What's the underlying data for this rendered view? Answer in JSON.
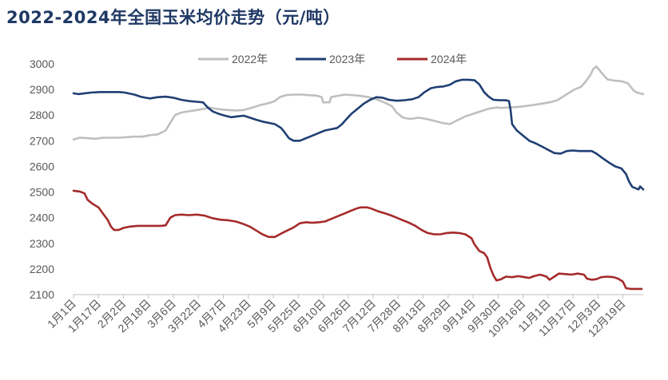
{
  "chart_data": {
    "type": "line",
    "title": "2022-2024年全国玉米均价走势（元/吨）",
    "ylim": [
      2100,
      3000
    ],
    "yticks": [
      2100,
      2200,
      2300,
      2400,
      2500,
      2600,
      2700,
      2800,
      2900,
      3000
    ],
    "x_tick_labels": [
      "1月1日",
      "1月17日",
      "2月2日",
      "2月18日",
      "3月6日",
      "3月22日",
      "4月7日",
      "4月23日",
      "5月9日",
      "5月25日",
      "6月10日",
      "6月26日",
      "7月12日",
      "7月28日",
      "8月13日",
      "8月29日",
      "9月14日",
      "9月30日",
      "10月16日",
      "11月1日",
      "11月17日",
      "12月3日",
      "12月19日"
    ],
    "x_tick_days": [
      1,
      17,
      33,
      49,
      65,
      81,
      97,
      113,
      129,
      145,
      161,
      177,
      193,
      209,
      225,
      241,
      257,
      273,
      289,
      305,
      321,
      337,
      353
    ],
    "xlim": [
      1,
      366
    ],
    "grid": false,
    "legend_position": "top",
    "series": [
      {
        "name": "2022年",
        "color": "#bfbfbf",
        "points": [
          [
            1,
            2705
          ],
          [
            5,
            2712
          ],
          [
            10,
            2710
          ],
          [
            15,
            2708
          ],
          [
            20,
            2712
          ],
          [
            25,
            2712
          ],
          [
            30,
            2712
          ],
          [
            35,
            2714
          ],
          [
            40,
            2716
          ],
          [
            45,
            2716
          ],
          [
            50,
            2722
          ],
          [
            55,
            2725
          ],
          [
            60,
            2740
          ],
          [
            63,
            2770
          ],
          [
            66,
            2800
          ],
          [
            70,
            2810
          ],
          [
            75,
            2815
          ],
          [
            80,
            2820
          ],
          [
            85,
            2825
          ],
          [
            88,
            2830
          ],
          [
            92,
            2825
          ],
          [
            96,
            2822
          ],
          [
            100,
            2820
          ],
          [
            105,
            2818
          ],
          [
            110,
            2820
          ],
          [
            113,
            2825
          ],
          [
            117,
            2832
          ],
          [
            121,
            2840
          ],
          [
            125,
            2845
          ],
          [
            130,
            2855
          ],
          [
            133,
            2870
          ],
          [
            137,
            2878
          ],
          [
            142,
            2880
          ],
          [
            147,
            2880
          ],
          [
            152,
            2878
          ],
          [
            157,
            2876
          ],
          [
            160,
            2870
          ],
          [
            161,
            2850
          ],
          [
            165,
            2850
          ],
          [
            166,
            2870
          ],
          [
            170,
            2875
          ],
          [
            175,
            2880
          ],
          [
            180,
            2878
          ],
          [
            185,
            2875
          ],
          [
            190,
            2870
          ],
          [
            195,
            2862
          ],
          [
            200,
            2850
          ],
          [
            205,
            2835
          ],
          [
            208,
            2810
          ],
          [
            212,
            2790
          ],
          [
            217,
            2785
          ],
          [
            222,
            2790
          ],
          [
            227,
            2785
          ],
          [
            232,
            2778
          ],
          [
            237,
            2770
          ],
          [
            242,
            2765
          ],
          [
            247,
            2780
          ],
          [
            252,
            2795
          ],
          [
            257,
            2805
          ],
          [
            262,
            2815
          ],
          [
            267,
            2825
          ],
          [
            272,
            2830
          ],
          [
            275,
            2828
          ],
          [
            280,
            2830
          ],
          [
            286,
            2832
          ],
          [
            290,
            2835
          ],
          [
            296,
            2840
          ],
          [
            301,
            2845
          ],
          [
            306,
            2850
          ],
          [
            311,
            2858
          ],
          [
            314,
            2870
          ],
          [
            318,
            2885
          ],
          [
            322,
            2900
          ],
          [
            326,
            2910
          ],
          [
            329,
            2930
          ],
          [
            332,
            2955
          ],
          [
            334,
            2980
          ],
          [
            336,
            2990
          ],
          [
            338,
            2975
          ],
          [
            340,
            2960
          ],
          [
            343,
            2940
          ],
          [
            347,
            2935
          ],
          [
            352,
            2932
          ],
          [
            356,
            2925
          ],
          [
            358,
            2910
          ],
          [
            360,
            2895
          ],
          [
            362,
            2888
          ],
          [
            364,
            2885
          ],
          [
            366,
            2882
          ]
        ]
      },
      {
        "name": "2023年",
        "color": "#1f3f73",
        "points": [
          [
            1,
            2885
          ],
          [
            4,
            2882
          ],
          [
            8,
            2885
          ],
          [
            12,
            2888
          ],
          [
            18,
            2890
          ],
          [
            25,
            2890
          ],
          [
            30,
            2890
          ],
          [
            34,
            2888
          ],
          [
            36,
            2885
          ],
          [
            40,
            2880
          ],
          [
            44,
            2872
          ],
          [
            47,
            2868
          ],
          [
            50,
            2865
          ],
          [
            55,
            2870
          ],
          [
            60,
            2872
          ],
          [
            65,
            2868
          ],
          [
            70,
            2860
          ],
          [
            75,
            2855
          ],
          [
            80,
            2852
          ],
          [
            84,
            2850
          ],
          [
            87,
            2830
          ],
          [
            90,
            2815
          ],
          [
            94,
            2805
          ],
          [
            98,
            2798
          ],
          [
            102,
            2792
          ],
          [
            106,
            2795
          ],
          [
            110,
            2798
          ],
          [
            114,
            2790
          ],
          [
            118,
            2782
          ],
          [
            122,
            2775
          ],
          [
            126,
            2770
          ],
          [
            130,
            2765
          ],
          [
            134,
            2750
          ],
          [
            136,
            2735
          ],
          [
            139,
            2710
          ],
          [
            142,
            2700
          ],
          [
            146,
            2700
          ],
          [
            150,
            2710
          ],
          [
            154,
            2720
          ],
          [
            158,
            2730
          ],
          [
            162,
            2740
          ],
          [
            166,
            2745
          ],
          [
            170,
            2750
          ],
          [
            173,
            2765
          ],
          [
            176,
            2785
          ],
          [
            179,
            2805
          ],
          [
            183,
            2825
          ],
          [
            187,
            2845
          ],
          [
            191,
            2860
          ],
          [
            195,
            2870
          ],
          [
            199,
            2868
          ],
          [
            203,
            2860
          ],
          [
            208,
            2856
          ],
          [
            213,
            2858
          ],
          [
            218,
            2862
          ],
          [
            222,
            2870
          ],
          [
            226,
            2890
          ],
          [
            230,
            2905
          ],
          [
            234,
            2910
          ],
          [
            238,
            2912
          ],
          [
            242,
            2918
          ],
          [
            246,
            2932
          ],
          [
            250,
            2938
          ],
          [
            254,
            2938
          ],
          [
            258,
            2936
          ],
          [
            261,
            2920
          ],
          [
            264,
            2890
          ],
          [
            267,
            2872
          ],
          [
            270,
            2860
          ],
          [
            274,
            2858
          ],
          [
            278,
            2858
          ],
          [
            280,
            2855
          ],
          [
            281,
            2820
          ],
          [
            282,
            2765
          ],
          [
            285,
            2740
          ],
          [
            289,
            2720
          ],
          [
            293,
            2700
          ],
          [
            297,
            2690
          ],
          [
            301,
            2678
          ],
          [
            305,
            2665
          ],
          [
            309,
            2652
          ],
          [
            313,
            2650
          ],
          [
            317,
            2660
          ],
          [
            321,
            2662
          ],
          [
            325,
            2660
          ],
          [
            329,
            2660
          ],
          [
            333,
            2660
          ],
          [
            336,
            2650
          ],
          [
            340,
            2632
          ],
          [
            344,
            2615
          ],
          [
            348,
            2600
          ],
          [
            352,
            2592
          ],
          [
            355,
            2570
          ],
          [
            357,
            2540
          ],
          [
            359,
            2520
          ],
          [
            361,
            2515
          ],
          [
            363,
            2510
          ],
          [
            364,
            2522
          ],
          [
            366,
            2510
          ]
        ]
      },
      {
        "name": "2024年",
        "color": "#a52a2a",
        "points": [
          [
            1,
            2505
          ],
          [
            5,
            2502
          ],
          [
            8,
            2495
          ],
          [
            10,
            2470
          ],
          [
            13,
            2455
          ],
          [
            17,
            2440
          ],
          [
            20,
            2415
          ],
          [
            23,
            2390
          ],
          [
            25,
            2365
          ],
          [
            27,
            2352
          ],
          [
            30,
            2352
          ],
          [
            33,
            2360
          ],
          [
            37,
            2365
          ],
          [
            42,
            2368
          ],
          [
            47,
            2368
          ],
          [
            52,
            2368
          ],
          [
            57,
            2368
          ],
          [
            60,
            2370
          ],
          [
            63,
            2400
          ],
          [
            66,
            2410
          ],
          [
            70,
            2412
          ],
          [
            75,
            2410
          ],
          [
            80,
            2412
          ],
          [
            85,
            2408
          ],
          [
            90,
            2398
          ],
          [
            95,
            2392
          ],
          [
            100,
            2390
          ],
          [
            105,
            2385
          ],
          [
            110,
            2375
          ],
          [
            114,
            2365
          ],
          [
            118,
            2350
          ],
          [
            122,
            2335
          ],
          [
            126,
            2325
          ],
          [
            130,
            2325
          ],
          [
            134,
            2338
          ],
          [
            138,
            2350
          ],
          [
            142,
            2362
          ],
          [
            146,
            2378
          ],
          [
            150,
            2382
          ],
          [
            154,
            2380
          ],
          [
            158,
            2382
          ],
          [
            162,
            2385
          ],
          [
            166,
            2395
          ],
          [
            170,
            2405
          ],
          [
            174,
            2415
          ],
          [
            178,
            2425
          ],
          [
            182,
            2435
          ],
          [
            185,
            2440
          ],
          [
            189,
            2440
          ],
          [
            192,
            2435
          ],
          [
            196,
            2425
          ],
          [
            200,
            2418
          ],
          [
            204,
            2410
          ],
          [
            208,
            2400
          ],
          [
            212,
            2390
          ],
          [
            216,
            2380
          ],
          [
            220,
            2368
          ],
          [
            224,
            2352
          ],
          [
            228,
            2340
          ],
          [
            232,
            2335
          ],
          [
            236,
            2335
          ],
          [
            240,
            2340
          ],
          [
            244,
            2342
          ],
          [
            248,
            2340
          ],
          [
            252,
            2335
          ],
          [
            256,
            2320
          ],
          [
            258,
            2295
          ],
          [
            261,
            2270
          ],
          [
            264,
            2262
          ],
          [
            266,
            2245
          ],
          [
            268,
            2205
          ],
          [
            270,
            2175
          ],
          [
            272,
            2155
          ],
          [
            275,
            2160
          ],
          [
            278,
            2170
          ],
          [
            282,
            2168
          ],
          [
            286,
            2172
          ],
          [
            290,
            2168
          ],
          [
            293,
            2165
          ],
          [
            296,
            2172
          ],
          [
            300,
            2178
          ],
          [
            304,
            2170
          ],
          [
            306,
            2158
          ],
          [
            309,
            2170
          ],
          [
            312,
            2182
          ],
          [
            316,
            2180
          ],
          [
            320,
            2178
          ],
          [
            324,
            2182
          ],
          [
            328,
            2178
          ],
          [
            330,
            2162
          ],
          [
            333,
            2158
          ],
          [
            336,
            2160
          ],
          [
            339,
            2168
          ],
          [
            343,
            2170
          ],
          [
            347,
            2168
          ],
          [
            350,
            2162
          ],
          [
            353,
            2150
          ],
          [
            355,
            2125
          ],
          [
            358,
            2122
          ],
          [
            362,
            2122
          ],
          [
            365,
            2122
          ]
        ]
      }
    ]
  }
}
